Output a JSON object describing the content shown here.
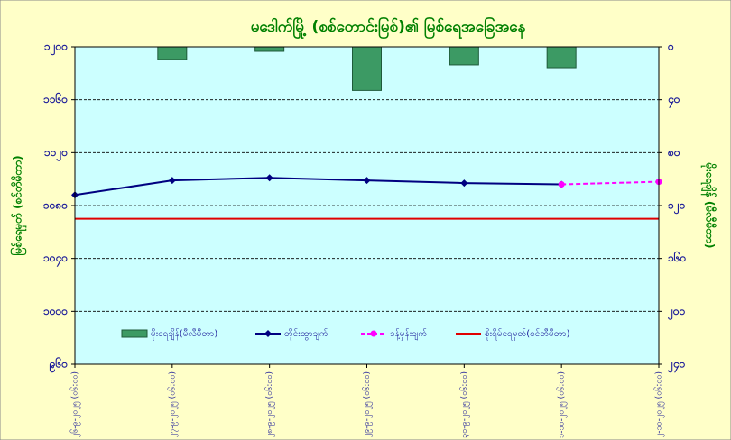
{
  "chart_data": {
    "type": "bar_line",
    "title": "မဒေါက်မြို့ (စစ်တောင်းမြစ်)၏ မြစ်ရေအခြေအနေ",
    "y_label": "မြစ်ရေမှတ် (စင်တီမီတာ)",
    "y2_label": "မိုးရေချိန် (မီလီမီတာ)",
    "categories": [
      "၂၆-၉-၂၀၂၅ (၀၆:၀၀)",
      "၂၇-၉-၂၀၂၅ (၀၆:၀၀)",
      "၂၈-၉-၂၀၂၅ (၀၆:၀၀)",
      "၂၉-၉-၂၀၂၅ (၀၆:၀၀)",
      "၃၀-၉-၂၀၂၅ (၀၆:၀၀)",
      "၁-၁၀-၂၀၂၅ (၀၆:၀၀)",
      "၂-၁၀-၂၀၂၅ (၀၆:၀၀)"
    ],
    "ylim": [
      960,
      1200
    ],
    "yticks": [
      {
        "value": 960,
        "label": "၉၆၀"
      },
      {
        "value": 1000,
        "label": "၁၀၀၀"
      },
      {
        "value": 1040,
        "label": "၁၀၄၀"
      },
      {
        "value": 1080,
        "label": "၁၀၈၀"
      },
      {
        "value": 1120,
        "label": "၁၁၂၀"
      },
      {
        "value": 1160,
        "label": "၁၁၆၀"
      },
      {
        "value": 1200,
        "label": "၁၂၀၀"
      }
    ],
    "y2lim": [
      0,
      240
    ],
    "y2_inverted": true,
    "y2ticks": [
      {
        "value": 0,
        "label": "၀"
      },
      {
        "value": 40,
        "label": "၄၀"
      },
      {
        "value": 80,
        "label": "၈၀"
      },
      {
        "value": 120,
        "label": "၁၂၀"
      },
      {
        "value": 160,
        "label": "၁၆၀"
      },
      {
        "value": 200,
        "label": "၂၀၀"
      },
      {
        "value": 240,
        "label": "၂၄၀"
      }
    ],
    "grid": true,
    "series": [
      {
        "name": "မိုးရေချိန်(မီလီမီတာ)",
        "kind": "bar",
        "axis": "y2",
        "color": "#3c9a64",
        "values": [
          null,
          9.5,
          3.4,
          33,
          13.6,
          15.7,
          null
        ]
      },
      {
        "name": "တိုင်းထွာချက်",
        "kind": "line",
        "color": "#000080",
        "values": [
          1088,
          1099,
          1101,
          1099,
          1097,
          1096,
          null
        ]
      },
      {
        "name": "ခန့်မှန်းချက်",
        "kind": "dashed_line",
        "color": "#ff00ff",
        "values": [
          null,
          null,
          null,
          null,
          null,
          1096,
          1098
        ]
      },
      {
        "name": "စိုးရိမ်ရေမှတ်(စင်တီမီတာ)",
        "kind": "reference",
        "color": "#e00000",
        "values": [
          1070,
          1070,
          1070,
          1070,
          1070,
          1070,
          1070
        ]
      }
    ]
  }
}
